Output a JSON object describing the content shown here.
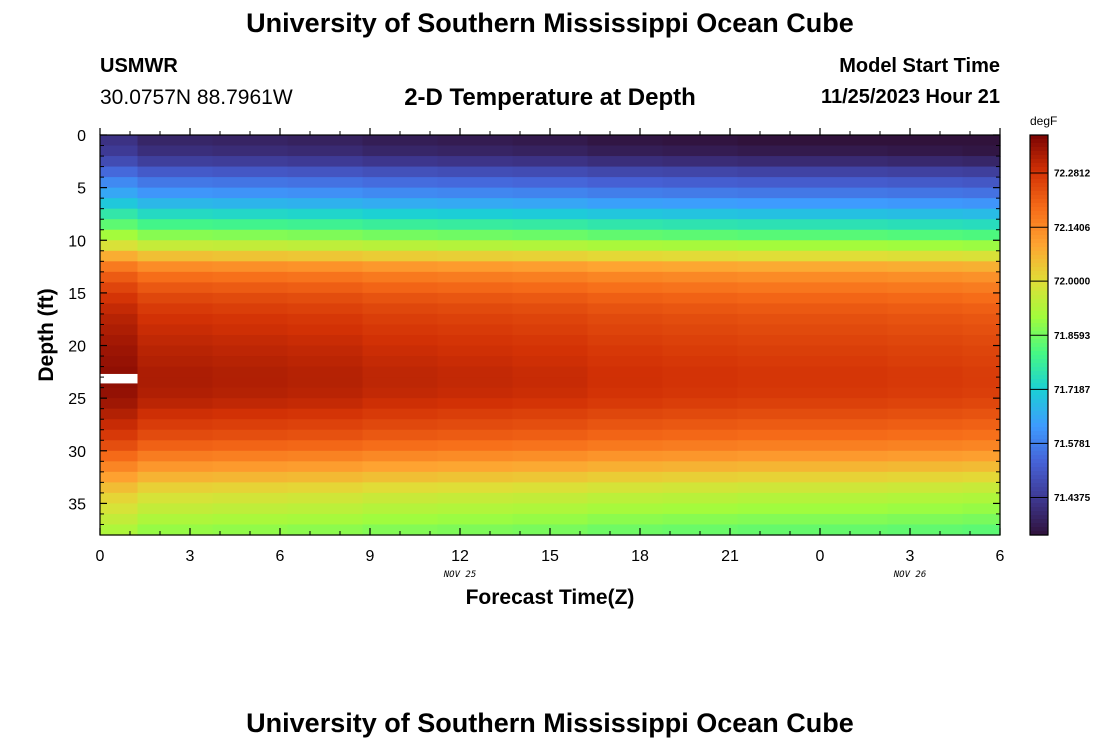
{
  "header": {
    "title": "University of Southern Mississippi Ocean Cube",
    "station_id": "USMWR",
    "station_coords": "30.0757N  88.7961W",
    "subtitle": "2-D Temperature at Depth",
    "model_start_label": "Model Start Time",
    "model_start_value": "11/25/2023 Hour 21"
  },
  "footer": {
    "next_title": "University of Southern Mississippi Ocean Cube"
  },
  "chart_data": {
    "type": "heatmap",
    "title": "2-D Temperature at Depth",
    "xlabel": "Forecast Time(Z)",
    "ylabel": "Depth (ft)",
    "x_tick_labels": [
      "0",
      "3",
      "6",
      "9",
      "12",
      "15",
      "18",
      "21",
      "0",
      "3",
      "6"
    ],
    "x_range_hours": [
      0,
      30
    ],
    "date_labels": [
      {
        "label": "NOV 25",
        "at_hour": 12
      },
      {
        "label": "NOV 26",
        "at_hour": 27
      }
    ],
    "y_ticks": [
      0,
      5,
      10,
      15,
      20,
      25,
      30,
      35
    ],
    "ylim": [
      0,
      38
    ],
    "y_inverted": true,
    "colorbar": {
      "unit": "degF",
      "range": [
        71.34,
        72.38
      ],
      "tick_values": [
        72.2812,
        72.14,
        72.0,
        71.8593,
        71.7187,
        71.5781,
        71.4375
      ],
      "tick_labels": [
        "72.2812",
        "72.1406",
        "72.0000",
        "71.8593",
        "71.7187",
        "71.5781",
        "71.4375"
      ],
      "colormap": [
        "#30123b",
        "#3e3891",
        "#4662d7",
        "#3e9bfe",
        "#1bd0d5",
        "#46f884",
        "#a2fc3c",
        "#e1dd37",
        "#fea331",
        "#f66b18",
        "#d23105",
        "#7a0403"
      ]
    },
    "columns_hours": [
      0,
      1.25,
      3.75,
      6.25,
      8.75,
      11.25,
      13.75,
      16.25,
      18.75,
      21.25,
      23.75,
      26.25,
      28.75
    ],
    "rows_depth_ft": [
      0,
      1,
      2,
      3,
      4,
      5,
      6,
      7,
      8,
      9,
      10,
      11,
      12,
      13,
      14,
      15,
      16,
      17,
      18,
      19,
      20,
      21,
      22,
      23,
      24,
      25,
      26,
      27,
      28,
      29,
      30,
      31,
      32,
      33,
      34,
      35,
      36,
      37,
      38
    ],
    "temperature_profile_degF": [
      {
        "depth": 0,
        "temp": 71.36
      },
      {
        "depth": 2,
        "temp": 71.4
      },
      {
        "depth": 4,
        "temp": 71.52
      },
      {
        "depth": 6,
        "temp": 71.62
      },
      {
        "depth": 7.5,
        "temp": 71.72
      },
      {
        "depth": 9,
        "temp": 71.82
      },
      {
        "depth": 10,
        "temp": 71.9
      },
      {
        "depth": 11,
        "temp": 71.98
      },
      {
        "depth": 12,
        "temp": 72.08
      },
      {
        "depth": 13,
        "temp": 72.15
      },
      {
        "depth": 15,
        "temp": 72.22
      },
      {
        "depth": 17,
        "temp": 72.26
      },
      {
        "depth": 20,
        "temp": 72.29
      },
      {
        "depth": 23,
        "temp": 72.31
      },
      {
        "depth": 25,
        "temp": 72.3
      },
      {
        "depth": 27,
        "temp": 72.26
      },
      {
        "depth": 29,
        "temp": 72.21
      },
      {
        "depth": 31,
        "temp": 72.12
      },
      {
        "depth": 32.5,
        "temp": 72.05
      },
      {
        "depth": 34,
        "temp": 71.98
      },
      {
        "depth": 36,
        "temp": 71.92
      },
      {
        "depth": 38,
        "temp": 71.86
      }
    ],
    "column_offsets_degF": [
      0.05,
      0.02,
      0.015,
      0.01,
      0.0,
      -0.005,
      -0.01,
      -0.02,
      -0.025,
      -0.03,
      -0.03,
      -0.035,
      -0.04
    ],
    "white_marker": {
      "hour_start": 0,
      "hour_end": 1.25,
      "depth_start": 22.7,
      "depth_end": 23.6
    },
    "grid": false
  }
}
